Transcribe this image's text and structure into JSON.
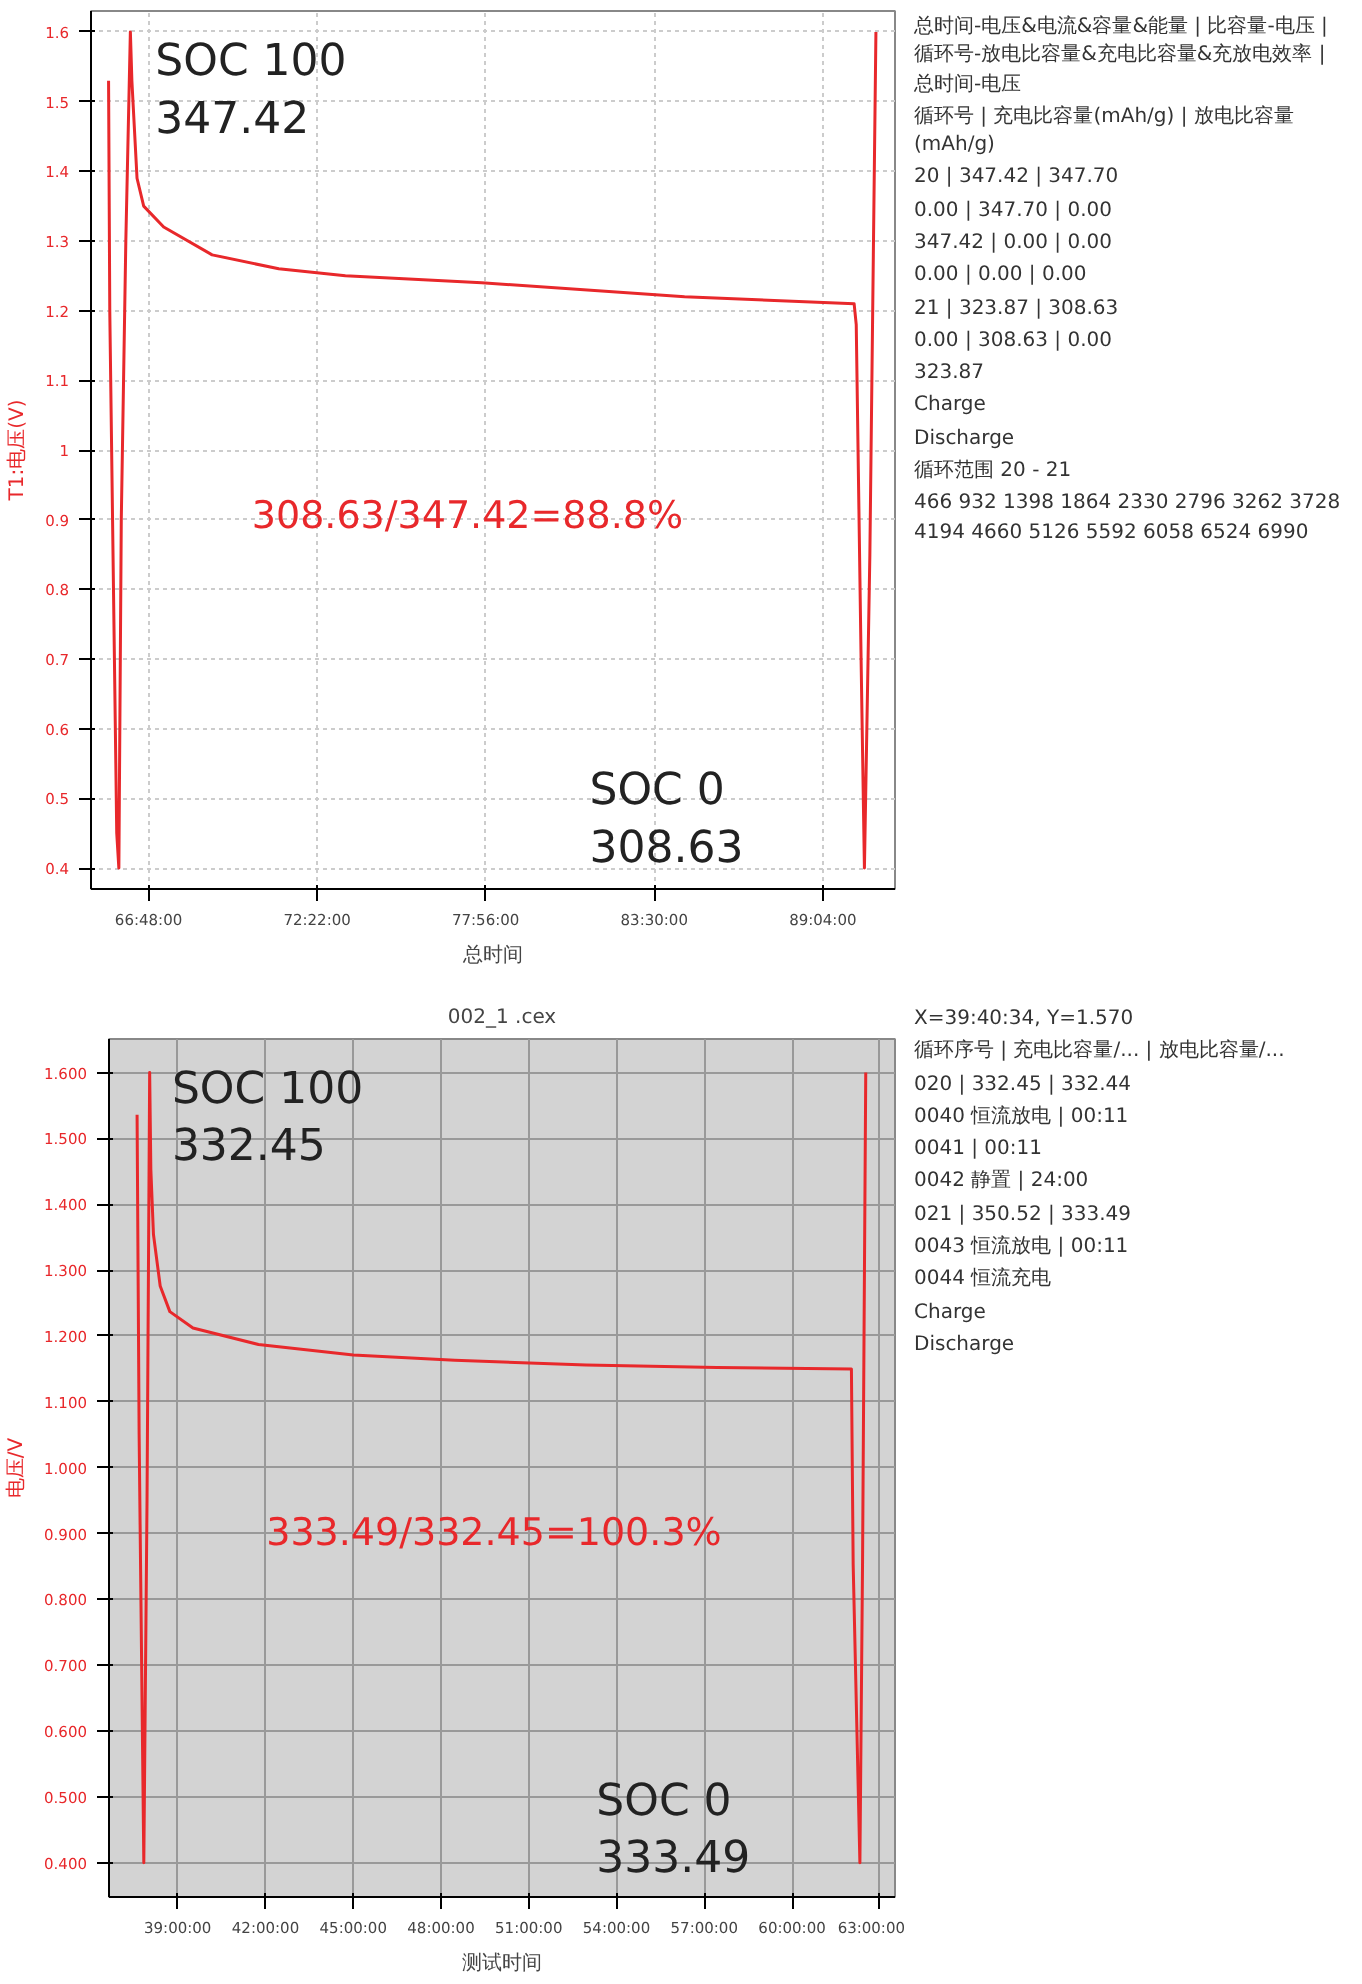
{
  "chart_data": [
    {
      "type": "line",
      "ylabel": "T1:电压(V)",
      "xlabel": "总时间",
      "x": [
        65.48,
        65.52,
        65.75,
        65.82,
        65.9,
        66.05,
        66.2,
        66.25,
        66.42,
        66.64,
        67.3,
        68.9,
        71.1,
        73.3,
        77.8,
        84.5,
        90.1,
        90.17,
        90.33,
        90.44,
        90.62,
        90.82
      ],
      "series": [
        {
          "color": "#e8282b",
          "values": [
            1.53,
            1.2,
            0.45,
            0.4,
            0.9,
            1.3,
            1.6,
            1.53,
            1.39,
            1.35,
            1.32,
            1.28,
            1.26,
            1.25,
            1.24,
            1.22,
            1.21,
            1.18,
            0.7,
            0.4,
            0.85,
            1.6
          ]
        }
      ],
      "xlim": [
        64.9,
        91.45
      ],
      "ylim": [
        0.37,
        1.63
      ],
      "xticks": [
        {
          "value": 66.8,
          "label": "66:48:00"
        },
        {
          "value": 72.3667,
          "label": "72:22:00"
        },
        {
          "value": 77.9333,
          "label": "77:56:00"
        },
        {
          "value": 83.5,
          "label": "83:30:00"
        },
        {
          "value": 89.0667,
          "label": "89:04:00"
        }
      ],
      "yticks": [
        0.4,
        0.5,
        0.6,
        0.7,
        0.8,
        0.9,
        1,
        1.1,
        1.2,
        1.3,
        1.4,
        1.5,
        1.6
      ],
      "grid": true,
      "marker": "none",
      "line_style": "solid",
      "annotations": [
        "SOC 100\n347.42",
        "308.63/347.42=88.8%",
        "SOC 0\n308.63",
        "总时间-电压&电流&容量&能量 | 比容量-电压 | 循环号-放电比容量&充电比容量&充放电效率 | 总时间-电压",
        "循环号 | 充电比容量(mAh/g) | 放电比容量(mAh/g)",
        "20 | 347.42 | 347.70",
        "0.00 | 347.70 | 0.00",
        "347.42 | 0.00 | 0.00",
        "0.00 | 0.00 | 0.00",
        "21 | 323.87 | 308.63",
        "0.00 | 308.63 | 0.00",
        "323.87",
        "Charge",
        "Discharge",
        "循环范围 20 - 21",
        "466 932 1398 1864 2330 2796 3262 3728 4194 4660 5126 5592 6058 6524 6990"
      ]
    },
    {
      "type": "line",
      "title": "002_1 .cex",
      "ylabel": "电压/V",
      "xlabel": "测试时间",
      "x": [
        37.61,
        37.68,
        37.84,
        37.95,
        38.04,
        38.08,
        38.17,
        38.4,
        38.73,
        39.52,
        41.76,
        45.0,
        48.47,
        52.96,
        57.43,
        62.03,
        62.09,
        62.32,
        62.41,
        62.52
      ],
      "series": [
        {
          "color": "#e8282b",
          "values": [
            1.536,
            1.05,
            0.4,
            0.95,
            1.6,
            1.453,
            1.354,
            1.276,
            1.237,
            1.212,
            1.187,
            1.171,
            1.163,
            1.156,
            1.152,
            1.15,
            0.853,
            0.4,
            0.853,
            1.6
          ]
        }
      ],
      "xlim": [
        36.65,
        63.52
      ],
      "ylim": [
        0.348,
        1.651
      ],
      "xticks": [
        {
          "value": 39,
          "label": "39:00:00"
        },
        {
          "value": 42,
          "label": "42:00:00"
        },
        {
          "value": 45,
          "label": "45:00:00"
        },
        {
          "value": 48,
          "label": "48:00:00"
        },
        {
          "value": 51,
          "label": "51:00:00"
        },
        {
          "value": 54,
          "label": "54:00:00"
        },
        {
          "value": 57,
          "label": "57:00:00"
        },
        {
          "value": 60,
          "label": "60:00:00"
        },
        {
          "value": 63,
          "label": "63:00:00"
        }
      ],
      "yticks": [
        {
          "value": 0.4,
          "label": "0.400"
        },
        {
          "value": 0.5,
          "label": "0.500"
        },
        {
          "value": 0.6,
          "label": "0.600"
        },
        {
          "value": 0.7,
          "label": "0.700"
        },
        {
          "value": 0.8,
          "label": "0.800"
        },
        {
          "value": 0.9,
          "label": "0.900"
        },
        {
          "value": 1.0,
          "label": "1.000"
        },
        {
          "value": 1.1,
          "label": "1.100"
        },
        {
          "value": 1.2,
          "label": "1.200"
        },
        {
          "value": 1.3,
          "label": "1.300"
        },
        {
          "value": 1.4,
          "label": "1.400"
        },
        {
          "value": 1.5,
          "label": "1.500"
        },
        {
          "value": 1.6,
          "label": "1.600"
        }
      ],
      "grid": true,
      "marker": "none",
      "line_style": "solid",
      "annotations": [
        "SOC 100\n332.45",
        "333.49/332.45=100.3%",
        "SOC 0\n333.49",
        "X=39:40:34, Y=1.570",
        "循环序号 | 充电比容量/... | 放电比容量/...",
        "020 | 332.45 | 332.44",
        "0040 恒流放电 | 00:11",
        "0041 | 00:11",
        "0042 静置 | 24:00",
        "021 | 350.52 | 333.49",
        "0043 恒流放电 | 00:11",
        "0044 恒流充电",
        "Charge",
        "Discharge"
      ]
    }
  ]
}
